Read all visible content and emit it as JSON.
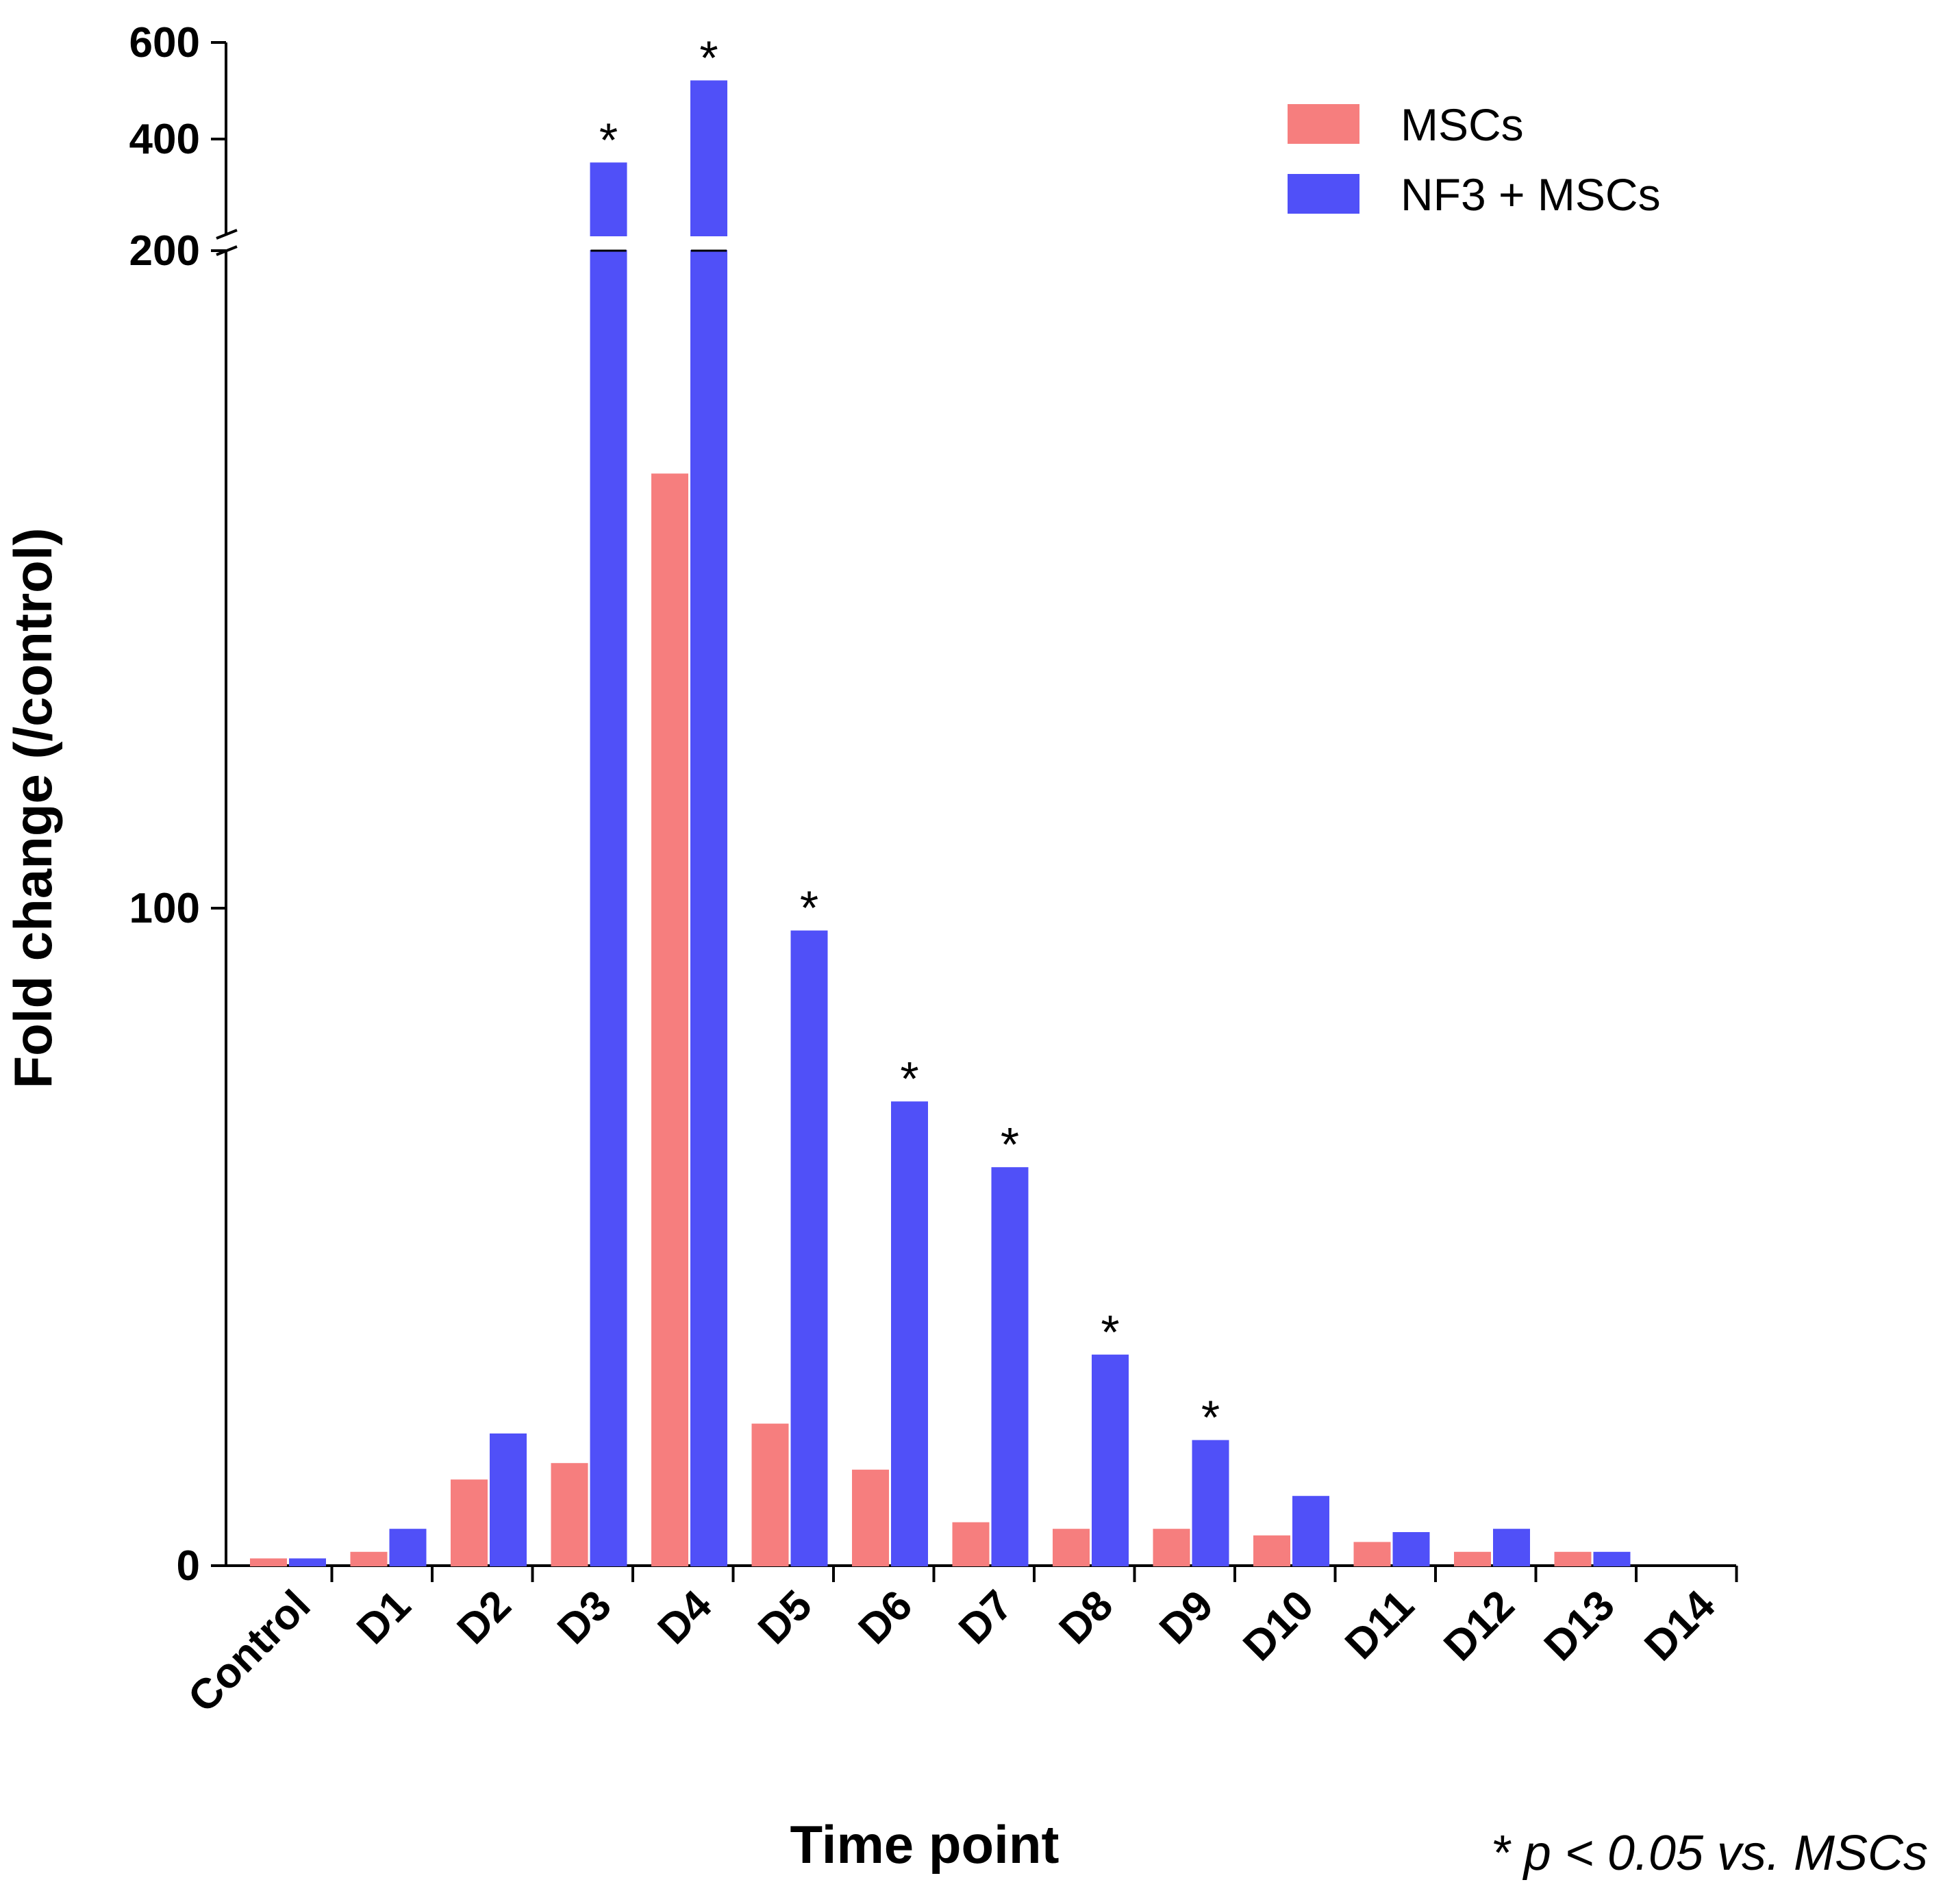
{
  "chart_data": {
    "type": "bar",
    "categories": [
      "Control",
      "D1",
      "D2",
      "D3",
      "D4",
      "D5",
      "D6",
      "D7",
      "D8",
      "D9",
      "D10",
      "D11",
      "D12",
      "D13",
      "D14"
    ],
    "series": [
      {
        "name": "MSCs",
        "color": "#f67e7e",
        "values": [
          1,
          2,
          13,
          15.5,
          166,
          21.5,
          14.5,
          6.5,
          5.5,
          5.5,
          4.5,
          3.5,
          2,
          2,
          0
        ]
      },
      {
        "name": "NF3 + MSCs",
        "color": "#5050f8",
        "values": [
          1,
          5.5,
          20,
          350,
          520,
          96.5,
          70.5,
          60.5,
          32,
          19,
          10.5,
          5,
          5.5,
          2,
          0
        ]
      }
    ],
    "significant": [
      false,
      false,
      false,
      true,
      true,
      true,
      true,
      true,
      true,
      true,
      false,
      false,
      false,
      false,
      false
    ],
    "significance_mark": "*",
    "xlabel": "Time point",
    "ylabel": "Fold change (/control)",
    "yticks": [
      "0",
      "100",
      "200",
      "400",
      "600"
    ],
    "ylim": [
      0,
      600
    ],
    "axis_break": [
      200,
      200
    ],
    "legend_position": "top-right",
    "footnote": "* p < 0.05 vs. MSCs"
  }
}
